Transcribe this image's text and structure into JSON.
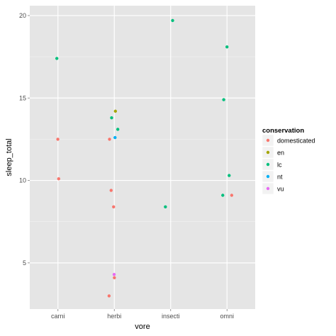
{
  "chart_data": {
    "type": "scatter",
    "xlabel": "vore",
    "ylabel": "sleep_total",
    "categories": [
      "carni",
      "herbi",
      "insecti",
      "omni"
    ],
    "ylim": [
      2.2,
      20.6
    ],
    "yticks": [
      5,
      10,
      15,
      20
    ],
    "grid": true,
    "legend": {
      "title": "conservation",
      "position": "right",
      "entries": [
        {
          "label": "domesticated",
          "color": "#F8766D"
        },
        {
          "label": "en",
          "color": "#A3A500"
        },
        {
          "label": "lc",
          "color": "#00BF7D"
        },
        {
          "label": "nt",
          "color": "#00B0F6"
        },
        {
          "label": "vu",
          "color": "#E76BF3"
        }
      ]
    },
    "series": [
      {
        "name": "domesticated",
        "points": [
          {
            "x": "carni",
            "y": 12.5
          },
          {
            "x": "carni",
            "y": 10.1
          },
          {
            "x": "herbi",
            "y": 12.5
          },
          {
            "x": "herbi",
            "y": 9.4
          },
          {
            "x": "herbi",
            "y": 8.4
          },
          {
            "x": "herbi",
            "y": 4.1
          },
          {
            "x": "herbi",
            "y": 3.0
          },
          {
            "x": "omni",
            "y": 9.1
          }
        ]
      },
      {
        "name": "en",
        "points": [
          {
            "x": "herbi",
            "y": 14.2
          }
        ]
      },
      {
        "name": "lc",
        "points": [
          {
            "x": "carni",
            "y": 17.4
          },
          {
            "x": "herbi",
            "y": 13.8
          },
          {
            "x": "herbi",
            "y": 13.1
          },
          {
            "x": "insecti",
            "y": 19.7
          },
          {
            "x": "insecti",
            "y": 8.4
          },
          {
            "x": "omni",
            "y": 18.1
          },
          {
            "x": "omni",
            "y": 14.9
          },
          {
            "x": "omni",
            "y": 10.3
          },
          {
            "x": "omni",
            "y": 9.1
          }
        ]
      },
      {
        "name": "nt",
        "points": [
          {
            "x": "herbi",
            "y": 12.6
          }
        ]
      },
      {
        "name": "vu",
        "points": [
          {
            "x": "herbi",
            "y": 4.3
          }
        ]
      }
    ]
  }
}
